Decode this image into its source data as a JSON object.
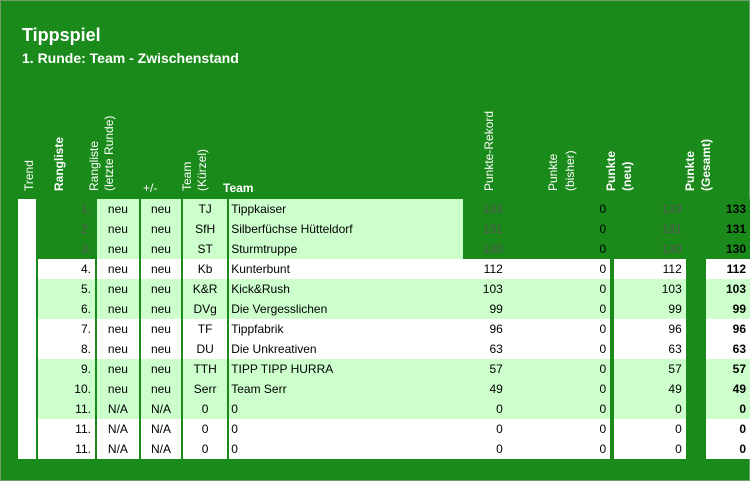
{
  "title": "Tippspiel",
  "subtitle": "1. Runde: Team - Zwischenstand",
  "headers": {
    "trend": "Trend",
    "rangliste": "Rangliste",
    "rangliste_letzte_1": "Rangliste",
    "rangliste_letzte_2": "(letzte Runde)",
    "plusminus": "+/-",
    "team_kurz_1": "Team",
    "team_kurz_2": "(Kürzel)",
    "team": "Team",
    "punkte_rekord": "Punkte-Rekord",
    "punkte_bisher_1": "Punkte",
    "punkte_bisher_2": "(bisher)",
    "punkte_neu_1": "Punkte",
    "punkte_neu_2": "(neu)",
    "punkte_gesamt_1": "Punkte",
    "punkte_gesamt_2": "(Gesamt)"
  },
  "rows": [
    {
      "rank": "1.",
      "last": "neu",
      "pm": "neu",
      "kurz": "TJ",
      "team": "Tippkaiser",
      "rekord": "133",
      "bisher": "0",
      "neu": "133",
      "gesamt": "133"
    },
    {
      "rank": "2.",
      "last": "neu",
      "pm": "neu",
      "kurz": "SfH",
      "team": "Silberfüchse Hütteldorf",
      "rekord": "131",
      "bisher": "0",
      "neu": "131",
      "gesamt": "131"
    },
    {
      "rank": "3.",
      "last": "neu",
      "pm": "neu",
      "kurz": "ST",
      "team": "Sturmtruppe",
      "rekord": "130",
      "bisher": "0",
      "neu": "130",
      "gesamt": "130"
    },
    {
      "rank": "4.",
      "last": "neu",
      "pm": "neu",
      "kurz": "Kb",
      "team": "Kunterbunt",
      "rekord": "112",
      "bisher": "0",
      "neu": "112",
      "gesamt": "112"
    },
    {
      "rank": "5.",
      "last": "neu",
      "pm": "neu",
      "kurz": "K&R",
      "team": "Kick&Rush",
      "rekord": "103",
      "bisher": "0",
      "neu": "103",
      "gesamt": "103"
    },
    {
      "rank": "6.",
      "last": "neu",
      "pm": "neu",
      "kurz": "DVg",
      "team": "Die Vergesslichen",
      "rekord": "99",
      "bisher": "0",
      "neu": "99",
      "gesamt": "99"
    },
    {
      "rank": "7.",
      "last": "neu",
      "pm": "neu",
      "kurz": "TF",
      "team": "Tippfabrik",
      "rekord": "96",
      "bisher": "0",
      "neu": "96",
      "gesamt": "96"
    },
    {
      "rank": "8.",
      "last": "neu",
      "pm": "neu",
      "kurz": "DU",
      "team": "Die Unkreativen",
      "rekord": "63",
      "bisher": "0",
      "neu": "63",
      "gesamt": "63"
    },
    {
      "rank": "9.",
      "last": "neu",
      "pm": "neu",
      "kurz": "TTH",
      "team": "TIPP TIPP HURRA",
      "rekord": "57",
      "bisher": "0",
      "neu": "57",
      "gesamt": "57"
    },
    {
      "rank": "10.",
      "last": "neu",
      "pm": "neu",
      "kurz": "Serr",
      "team": "Team Serr",
      "rekord": "49",
      "bisher": "0",
      "neu": "49",
      "gesamt": "49"
    },
    {
      "rank": "11.",
      "last": "N/A",
      "pm": "N/A",
      "kurz": "0",
      "team": "0",
      "rekord": "0",
      "bisher": "0",
      "neu": "0",
      "gesamt": "0"
    },
    {
      "rank": "11.",
      "last": "N/A",
      "pm": "N/A",
      "kurz": "0",
      "team": "0",
      "rekord": "0",
      "bisher": "0",
      "neu": "0",
      "gesamt": "0"
    },
    {
      "rank": "11.",
      "last": "N/A",
      "pm": "N/A",
      "kurz": "0",
      "team": "0",
      "rekord": "0",
      "bisher": "0",
      "neu": "0",
      "gesamt": "0"
    }
  ]
}
